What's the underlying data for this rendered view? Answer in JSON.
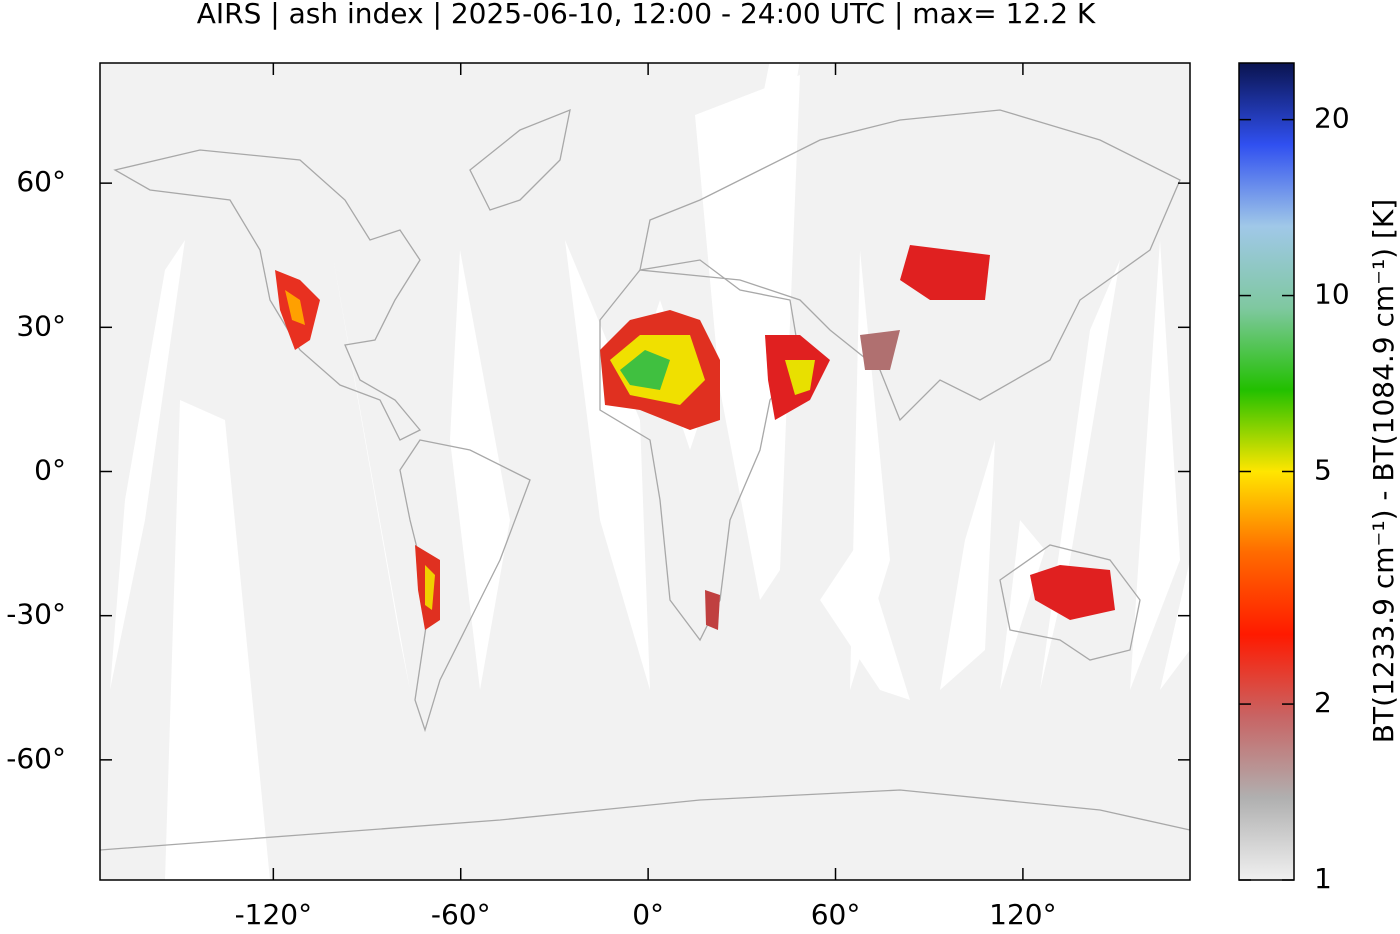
{
  "chart_data": {
    "type": "map",
    "title": "AIRS | ash index | 2025-06-10, 12:00 - 24:00 UTC | max= 12.2 K",
    "xlim": [
      -175.5,
      173.5
    ],
    "ylim": [
      -85,
      85
    ],
    "xticks": [
      {
        "value": -120,
        "label": "-120°"
      },
      {
        "value": -60,
        "label": "-60°"
      },
      {
        "value": 0,
        "label": "0°"
      },
      {
        "value": 60,
        "label": "60°"
      },
      {
        "value": 120,
        "label": "120°"
      }
    ],
    "yticks": [
      {
        "value": 60,
        "label": "60°"
      },
      {
        "value": 30,
        "label": "30°"
      },
      {
        "value": 0,
        "label": "0°"
      },
      {
        "value": -30,
        "label": "-30°"
      },
      {
        "value": -60,
        "label": "-60°"
      }
    ],
    "colorbar": {
      "label": "BT(1233.9 cm⁻¹) - BT(1084.9 cm⁻¹) [K]",
      "log": true,
      "lim": [
        1,
        25
      ],
      "ticks": [
        1,
        2,
        5,
        10,
        20
      ],
      "colormap": [
        "#f0f0f0",
        "#b0b0b0",
        "#c86464",
        "#ff1a00",
        "#ff6a00",
        "#ffe600",
        "#22c000",
        "#7fc8a0",
        "#a0c8e8",
        "#3050f0",
        "#0a1450"
      ]
    }
  }
}
